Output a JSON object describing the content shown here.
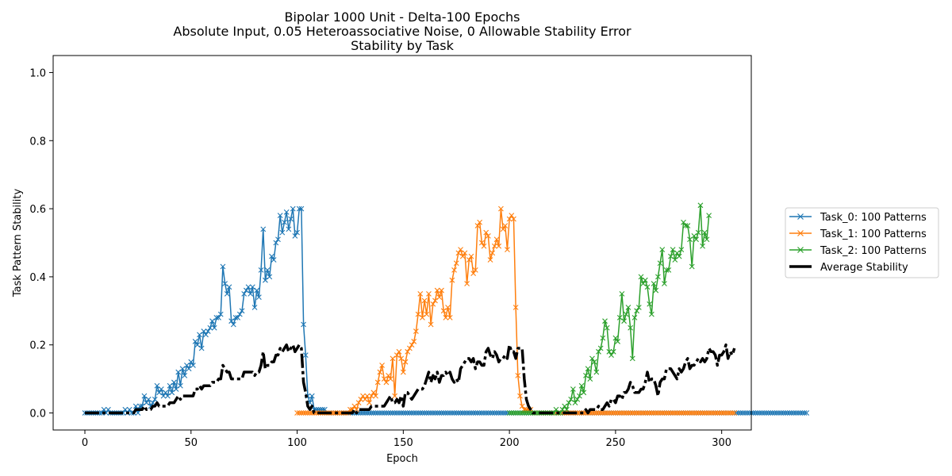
{
  "chart_data": {
    "type": "line",
    "title": [
      "Bipolar 1000 Unit - Delta-100 Epochs",
      "Absolute Input, 0.05 Heteroassociative Noise, 0 Allowable Stability Error",
      "Stability by Task"
    ],
    "xlabel": "Epoch",
    "ylabel": "Task Pattern Stability",
    "xlim": [
      -14.95,
      313.95
    ],
    "ylim": [
      -0.05,
      1.05
    ],
    "xticks": [
      0,
      50,
      100,
      150,
      200,
      250,
      300
    ],
    "yticks": [
      0.0,
      0.2,
      0.4,
      0.6,
      0.8,
      1.0
    ],
    "xtick_labels": [
      "0",
      "50",
      "100",
      "150",
      "200",
      "250",
      "300"
    ],
    "ytick_labels": [
      "0.0",
      "0.2",
      "0.4",
      "0.6",
      "0.8",
      "1.0"
    ],
    "grid": false,
    "legend_position": "outside-right",
    "series": [
      {
        "name": "Task_0: 100 Patterns",
        "color": "#1f77b4",
        "marker": "x",
        "x_start": 0,
        "y": [
          0,
          0,
          0,
          0,
          0,
          0,
          0,
          0,
          0,
          0.01,
          0,
          0.01,
          0,
          0,
          0,
          0,
          0,
          0,
          0,
          0.01,
          0,
          0.01,
          0,
          0,
          0.02,
          0,
          0.02,
          0.02,
          0.05,
          0.03,
          0.04,
          0.02,
          0.03,
          0.04,
          0.08,
          0.06,
          0.07,
          0.05,
          0.06,
          0.05,
          0.08,
          0.06,
          0.09,
          0.07,
          0.12,
          0.08,
          0.13,
          0.11,
          0.14,
          0.13,
          0.15,
          0.14,
          0.21,
          0.2,
          0.23,
          0.19,
          0.24,
          0.23,
          0.24,
          0.25,
          0.27,
          0.25,
          0.28,
          0.28,
          0.29,
          0.43,
          0.38,
          0.35,
          0.37,
          0.27,
          0.26,
          0.28,
          0.28,
          0.29,
          0.3,
          0.35,
          0.36,
          0.37,
          0.35,
          0.37,
          0.31,
          0.36,
          0.34,
          0.42,
          0.54,
          0.39,
          0.42,
          0.4,
          0.46,
          0.45,
          0.5,
          0.51,
          0.58,
          0.53,
          0.56,
          0.59,
          0.54,
          0.57,
          0.6,
          0.52,
          0.53,
          0.6,
          0.6,
          0.26,
          0.17,
          0.05,
          0.03,
          0.05,
          0.01,
          0.01,
          0.01,
          0.01,
          0.01,
          0.01,
          0,
          0,
          0,
          0,
          0,
          0,
          0,
          0,
          0,
          0,
          0,
          0,
          0,
          0,
          0,
          0,
          0,
          0,
          0,
          0,
          0,
          0,
          0,
          0,
          0,
          0,
          0,
          0,
          0,
          0,
          0,
          0,
          0,
          0,
          0,
          0,
          0,
          0,
          0,
          0,
          0,
          0,
          0,
          0,
          0,
          0,
          0,
          0,
          0,
          0,
          0,
          0,
          0,
          0,
          0,
          0,
          0,
          0,
          0,
          0,
          0,
          0,
          0,
          0,
          0,
          0,
          0,
          0,
          0,
          0,
          0,
          0,
          0,
          0,
          0,
          0,
          0,
          0,
          0,
          0,
          0,
          0,
          0,
          0,
          0,
          0,
          0,
          0,
          0,
          0,
          0,
          0,
          0,
          0,
          0,
          0,
          0,
          0,
          0,
          0,
          0,
          0,
          0,
          0,
          0,
          0,
          0,
          0,
          0,
          0,
          0,
          0,
          0,
          0,
          0,
          0,
          0,
          0,
          0,
          0,
          0,
          0,
          0,
          0,
          0,
          0,
          0,
          0,
          0,
          0,
          0,
          0,
          0,
          0,
          0,
          0,
          0,
          0,
          0,
          0,
          0,
          0,
          0,
          0,
          0,
          0,
          0,
          0,
          0,
          0,
          0,
          0,
          0,
          0,
          0,
          0,
          0,
          0,
          0,
          0,
          0,
          0,
          0,
          0,
          0,
          0,
          0,
          0,
          0,
          0,
          0,
          0,
          0,
          0,
          0,
          0,
          0,
          0,
          0,
          0,
          0,
          0,
          0,
          0,
          0,
          0,
          0,
          0,
          0,
          0,
          0,
          0,
          0,
          0,
          0,
          0,
          0,
          0,
          0,
          0,
          0,
          0,
          0,
          0,
          0,
          0,
          0,
          0,
          0,
          0,
          0,
          0,
          0,
          0,
          0,
          0,
          0,
          0,
          0,
          0,
          0,
          0,
          0,
          0,
          0,
          0,
          0
        ]
      },
      {
        "name": "Task_1: 100 Patterns",
        "color": "#ff7f0e",
        "marker": "x",
        "x_start": 100,
        "y": [
          0,
          0,
          0,
          0,
          0,
          0,
          0,
          0,
          0,
          0,
          0,
          0,
          0,
          0,
          0,
          0,
          0,
          0,
          0,
          0,
          0,
          0,
          0,
          0,
          0,
          0.01,
          0.01,
          0.02,
          0.01,
          0.03,
          0.04,
          0.05,
          0.04,
          0.05,
          0.03,
          0.05,
          0.06,
          0.05,
          0.09,
          0.12,
          0.14,
          0.1,
          0.09,
          0.11,
          0.1,
          0.16,
          0.05,
          0.17,
          0.18,
          0.16,
          0.12,
          0.15,
          0.18,
          0.19,
          0.2,
          0.21,
          0.24,
          0.29,
          0.35,
          0.28,
          0.33,
          0.29,
          0.35,
          0.26,
          0.32,
          0.33,
          0.36,
          0.34,
          0.36,
          0.3,
          0.28,
          0.31,
          0.28,
          0.39,
          0.42,
          0.44,
          0.47,
          0.48,
          0.46,
          0.47,
          0.38,
          0.45,
          0.46,
          0.41,
          0.42,
          0.55,
          0.56,
          0.5,
          0.49,
          0.53,
          0.52,
          0.45,
          0.47,
          0.49,
          0.51,
          0.49,
          0.6,
          0.54,
          0.55,
          0.48,
          0.57,
          0.58,
          0.57,
          0.31,
          0.11,
          0.05,
          0.02,
          0.01,
          0.01,
          0.01,
          0.01,
          0,
          0,
          0,
          0,
          0,
          0,
          0,
          0,
          0,
          0,
          0,
          0,
          0,
          0,
          0,
          0,
          0,
          0,
          0,
          0,
          0,
          0,
          0,
          0,
          0,
          0,
          0,
          0,
          0,
          0,
          0,
          0,
          0,
          0,
          0,
          0,
          0,
          0,
          0,
          0,
          0,
          0,
          0,
          0,
          0,
          0,
          0,
          0,
          0,
          0,
          0,
          0,
          0,
          0,
          0,
          0,
          0,
          0,
          0,
          0,
          0,
          0,
          0,
          0,
          0,
          0,
          0,
          0,
          0,
          0,
          0,
          0,
          0,
          0,
          0,
          0,
          0,
          0,
          0,
          0,
          0,
          0,
          0,
          0,
          0,
          0,
          0,
          0,
          0,
          0,
          0,
          0,
          0,
          0,
          0,
          0
        ]
      },
      {
        "name": "Task_2: 100 Patterns",
        "color": "#2ca02c",
        "marker": "x",
        "x_start": 200,
        "y": [
          0,
          0,
          0,
          0,
          0,
          0,
          0,
          0,
          0,
          0,
          0,
          0,
          0,
          0,
          0,
          0,
          0,
          0,
          0,
          0,
          0,
          0,
          0.01,
          0,
          0,
          0.01,
          0.02,
          0.01,
          0.03,
          0.04,
          0.07,
          0.03,
          0.04,
          0.05,
          0.08,
          0.06,
          0.11,
          0.13,
          0.1,
          0.16,
          0.15,
          0.12,
          0.18,
          0.19,
          0.22,
          0.27,
          0.25,
          0.18,
          0.17,
          0.18,
          0.22,
          0.21,
          0.28,
          0.35,
          0.27,
          0.29,
          0.31,
          0.25,
          0.16,
          0.28,
          0.3,
          0.31,
          0.4,
          0.38,
          0.39,
          0.37,
          0.32,
          0.29,
          0.38,
          0.36,
          0.4,
          0.44,
          0.48,
          0.38,
          0.42,
          0.42,
          0.46,
          0.48,
          0.45,
          0.47,
          0.46,
          0.48,
          0.56,
          0.55,
          0.55,
          0.51,
          0.43,
          0.52,
          0.51,
          0.53,
          0.61,
          0.49,
          0.53,
          0.51,
          0.58
        ]
      }
    ],
    "average": {
      "name": "Average Stability",
      "color": "#000000",
      "x_start": 0,
      "y": [
        0,
        0,
        0,
        0,
        0,
        0,
        0,
        0,
        0,
        0,
        0,
        0,
        0,
        0,
        0,
        0,
        0,
        0,
        0,
        0,
        0,
        0,
        0,
        0,
        0.01,
        0.01,
        0.01,
        0.01,
        0.02,
        0.01,
        0.01,
        0.01,
        0.02,
        0.02,
        0.03,
        0.02,
        0.02,
        0.02,
        0.02,
        0.02,
        0.03,
        0.03,
        0.03,
        0.04,
        0.05,
        0.04,
        0.05,
        0.05,
        0.05,
        0.05,
        0.05,
        0.05,
        0.07,
        0.07,
        0.08,
        0.07,
        0.08,
        0.08,
        0.08,
        0.08,
        0.09,
        0.09,
        0.09,
        0.1,
        0.1,
        0.14,
        0.13,
        0.12,
        0.12,
        0.1,
        0.1,
        0.1,
        0.1,
        0.1,
        0.1,
        0.12,
        0.12,
        0.12,
        0.12,
        0.12,
        0.11,
        0.12,
        0.12,
        0.14,
        0.18,
        0.13,
        0.14,
        0.14,
        0.15,
        0.15,
        0.17,
        0.17,
        0.19,
        0.18,
        0.19,
        0.2,
        0.18,
        0.19,
        0.2,
        0.18,
        0.19,
        0.2,
        0.19,
        0.09,
        0.06,
        0.02,
        0.01,
        0.02,
        0,
        0,
        0,
        0,
        0,
        0,
        0,
        0,
        0,
        0,
        0,
        0,
        0,
        0,
        0,
        0,
        0,
        0,
        0,
        0.01,
        0,
        0.01,
        0.01,
        0.01,
        0.01,
        0.01,
        0.01,
        0.02,
        0.02,
        0.02,
        0.02,
        0.02,
        0.02,
        0.02,
        0.03,
        0.04,
        0.05,
        0.03,
        0.03,
        0.04,
        0.03,
        0.05,
        0.02,
        0.06,
        0.06,
        0.05,
        0.04,
        0.05,
        0.06,
        0.07,
        0.07,
        0.07,
        0.08,
        0.1,
        0.12,
        0.09,
        0.11,
        0.1,
        0.12,
        0.09,
        0.11,
        0.11,
        0.12,
        0.11,
        0.12,
        0.1,
        0.09,
        0.1,
        0.09,
        0.13,
        0.14,
        0.15,
        0.16,
        0.16,
        0.15,
        0.16,
        0.13,
        0.15,
        0.15,
        0.14,
        0.14,
        0.18,
        0.19,
        0.17,
        0.16,
        0.18,
        0.17,
        0.15,
        0.16,
        0.16,
        0.17,
        0.16,
        0.2,
        0.18,
        0.18,
        0.16,
        0.19,
        0.19,
        0.19,
        0.1,
        0.04,
        0.02,
        0.01,
        0,
        0,
        0,
        0,
        0,
        0,
        0,
        0,
        0,
        0,
        0,
        0,
        0,
        0,
        0,
        0,
        0,
        0,
        0,
        0,
        0,
        0,
        0,
        0,
        0,
        0.01,
        0,
        0.01,
        0.01,
        0.01,
        0.01,
        0.02,
        0.01,
        0.01,
        0.02,
        0.03,
        0.02,
        0.04,
        0.04,
        0.03,
        0.05,
        0.05,
        0.04,
        0.06,
        0.06,
        0.07,
        0.09,
        0.08,
        0.06,
        0.06,
        0.06,
        0.07,
        0.07,
        0.09,
        0.12,
        0.09,
        0.1,
        0.1,
        0.08,
        0.05,
        0.09,
        0.1,
        0.1,
        0.13,
        0.13,
        0.13,
        0.12,
        0.11,
        0.1,
        0.13,
        0.12,
        0.13,
        0.15,
        0.16,
        0.13,
        0.14,
        0.14,
        0.15,
        0.16,
        0.15,
        0.16,
        0.15,
        0.16,
        0.19,
        0.18,
        0.18,
        0.17,
        0.14,
        0.17,
        0.17,
        0.18,
        0.2,
        0.16,
        0.18,
        0.17,
        0.19
      ]
    }
  }
}
